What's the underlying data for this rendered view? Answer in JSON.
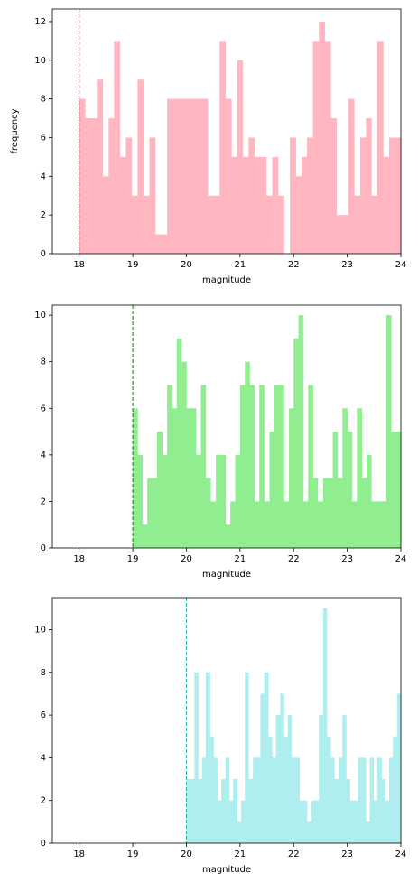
{
  "chart_data": [
    {
      "type": "histogram",
      "xlabel": "magnitude",
      "ylabel": "frequency",
      "color": "#ffb6c1",
      "bins": [
        18,
        18.11,
        18.22,
        18.33,
        18.44,
        18.55,
        18.65,
        18.76,
        18.87,
        18.98,
        19.09,
        19.2,
        19.31,
        19.42,
        19.53,
        19.64,
        19.75,
        19.85,
        19.96,
        20.07,
        20.18,
        20.29,
        20.4,
        20.51,
        20.62,
        20.73,
        20.84,
        20.95,
        21.05,
        21.16,
        21.27,
        21.38,
        21.49,
        21.6,
        21.71,
        21.82,
        21.93,
        22.04,
        22.15,
        22.25,
        22.36,
        22.47,
        22.58,
        22.69,
        22.8,
        22.91,
        23.02,
        23.13,
        23.24,
        23.35,
        23.45,
        23.56,
        23.67,
        23.78,
        23.89,
        24
      ],
      "values": [
        8,
        7,
        7,
        9,
        4,
        7,
        11,
        5,
        6,
        3,
        9,
        3,
        6,
        1,
        1,
        8,
        8,
        8,
        8,
        8,
        8,
        8,
        3,
        3,
        11,
        8,
        5,
        10,
        5,
        6,
        5,
        5,
        3,
        5,
        3,
        0,
        6,
        4,
        5,
        6,
        11,
        12,
        11,
        7,
        2,
        2,
        8,
        3,
        6,
        7,
        3,
        11,
        5,
        6,
        6
      ],
      "vline": 18,
      "vline_color": "red",
      "xlim": [
        17.5,
        24
      ],
      "xticks": [
        18,
        19,
        20,
        21,
        22,
        23,
        24
      ],
      "ylim": [
        0,
        12.65
      ],
      "yticks": [
        0,
        2,
        4,
        6,
        8,
        10,
        12
      ]
    },
    {
      "type": "histogram",
      "xlabel": "magnitude",
      "color": "#90ee90",
      "bins": [
        19,
        19.09,
        19.18,
        19.27,
        19.36,
        19.45,
        19.55,
        19.64,
        19.73,
        19.82,
        19.91,
        20,
        20.09,
        20.18,
        20.27,
        20.36,
        20.45,
        20.55,
        20.64,
        20.73,
        20.82,
        20.91,
        21,
        21.09,
        21.18,
        21.27,
        21.36,
        21.45,
        21.55,
        21.64,
        21.73,
        21.82,
        21.91,
        22,
        22.09,
        22.18,
        22.27,
        22.36,
        22.45,
        22.55,
        22.64,
        22.73,
        22.82,
        22.91,
        23,
        23.09,
        23.18,
        23.27,
        23.36,
        23.45,
        23.55,
        23.64,
        23.73,
        23.82,
        23.91,
        24
      ],
      "values": [
        6,
        4,
        1,
        3,
        3,
        5,
        4,
        7,
        6,
        9,
        8,
        6,
        6,
        4,
        7,
        3,
        2,
        4,
        4,
        1,
        2,
        4,
        7,
        8,
        7,
        2,
        7,
        2,
        5,
        7,
        7,
        2,
        6,
        9,
        10,
        2,
        7,
        3,
        2,
        3,
        3,
        5,
        3,
        6,
        5,
        2,
        6,
        3,
        4,
        2,
        2,
        2,
        10,
        5,
        5
      ],
      "vline": 19,
      "vline_color": "green",
      "xlim": [
        17.5,
        24
      ],
      "xticks": [
        18,
        19,
        20,
        21,
        22,
        23,
        24
      ],
      "ylim": [
        0,
        10.43
      ],
      "yticks": [
        0,
        2,
        4,
        6,
        8,
        10
      ]
    },
    {
      "type": "histogram",
      "xlabel": "magnitude",
      "color": "#afeeee",
      "bins": [
        20,
        20.07,
        20.15,
        20.22,
        20.29,
        20.36,
        20.44,
        20.51,
        20.58,
        20.65,
        20.73,
        20.8,
        20.87,
        20.95,
        21.02,
        21.09,
        21.16,
        21.24,
        21.31,
        21.38,
        21.45,
        21.53,
        21.6,
        21.67,
        21.75,
        21.82,
        21.89,
        21.96,
        22.04,
        22.11,
        22.18,
        22.25,
        22.33,
        22.4,
        22.47,
        22.55,
        22.62,
        22.69,
        22.76,
        22.84,
        22.91,
        22.98,
        23.05,
        23.13,
        23.2,
        23.27,
        23.35,
        23.42,
        23.49,
        23.56,
        23.64,
        23.71,
        23.78,
        23.85,
        23.93,
        24
      ],
      "values": [
        3,
        3,
        8,
        3,
        4,
        8,
        5,
        4,
        2,
        3,
        4,
        2,
        3,
        1,
        2,
        8,
        3,
        4,
        4,
        7,
        8,
        5,
        4,
        6,
        7,
        5,
        6,
        4,
        4,
        2,
        2,
        1,
        2,
        2,
        6,
        11,
        5,
        4,
        3,
        4,
        6,
        3,
        2,
        2,
        4,
        4,
        1,
        4,
        2,
        4,
        3,
        2,
        4,
        5,
        7
      ],
      "vline": 20,
      "vline_color": "lightseagreen",
      "xlim": [
        17.5,
        24
      ],
      "xticks": [
        18,
        19,
        20,
        21,
        22,
        23,
        24
      ],
      "ylim": [
        0,
        11.5
      ],
      "yticks": [
        0,
        2,
        4,
        6,
        8,
        10
      ]
    }
  ]
}
